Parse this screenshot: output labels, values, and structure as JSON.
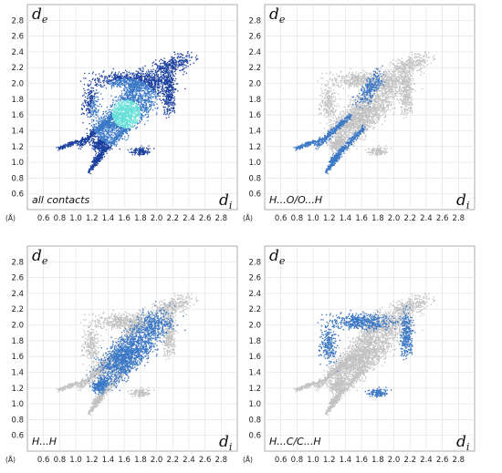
{
  "chart_data": [
    {
      "type": "scatter",
      "title": "",
      "label": "all contacts",
      "unit": "(Å)",
      "x_symbol": "d",
      "x_sub": "i",
      "y_symbol": "d",
      "y_sub": "e",
      "xlim": [
        0.4,
        3.0
      ],
      "ylim": [
        0.4,
        3.0
      ],
      "xticks": [
        "0.6",
        "0.8",
        "1.0",
        "1.2",
        "1.4",
        "1.6",
        "1.8",
        "2.0",
        "2.2",
        "2.4",
        "2.6",
        "2.8"
      ],
      "yticks": [
        "0.6",
        "0.8",
        "1.0",
        "1.2",
        "1.4",
        "1.6",
        "1.8",
        "2.0",
        "2.2",
        "2.4",
        "2.6",
        "2.8"
      ],
      "grid": true,
      "highlight": "all",
      "colors": {
        "dense": "#66e0d8",
        "mid": "#3a78c8",
        "sparse": "#1a3f9e",
        "background": "#c2c2c2"
      }
    },
    {
      "type": "scatter",
      "title": "",
      "label": "H...O/O...H",
      "unit": "(Å)",
      "x_symbol": "d",
      "x_sub": "i",
      "y_symbol": "d",
      "y_sub": "e",
      "xlim": [
        0.4,
        3.0
      ],
      "ylim": [
        0.4,
        3.0
      ],
      "xticks": [
        "0.6",
        "0.8",
        "1.0",
        "1.2",
        "1.4",
        "1.6",
        "1.8",
        "2.0",
        "2.2",
        "2.4",
        "2.6",
        "2.8"
      ],
      "yticks": [
        "0.6",
        "0.8",
        "1.0",
        "1.2",
        "1.4",
        "1.6",
        "1.8",
        "2.0",
        "2.2",
        "2.4",
        "2.6",
        "2.8"
      ],
      "grid": true,
      "highlight": "H...O/O...H",
      "colors": {
        "dense": "#66e0d8",
        "mid": "#3a78c8",
        "sparse": "#1a3f9e",
        "background": "#c2c2c2"
      }
    },
    {
      "type": "scatter",
      "title": "",
      "label": "H...H",
      "unit": "(Å)",
      "x_symbol": "d",
      "x_sub": "i",
      "y_symbol": "d",
      "y_sub": "e",
      "xlim": [
        0.4,
        3.0
      ],
      "ylim": [
        0.4,
        3.0
      ],
      "xticks": [
        "0.6",
        "0.8",
        "1.0",
        "1.2",
        "1.4",
        "1.6",
        "1.8",
        "2.0",
        "2.2",
        "2.4",
        "2.6",
        "2.8"
      ],
      "yticks": [
        "0.6",
        "0.8",
        "1.0",
        "1.2",
        "1.4",
        "1.6",
        "1.8",
        "2.0",
        "2.2",
        "2.4",
        "2.6",
        "2.8"
      ],
      "grid": true,
      "highlight": "H...H",
      "colors": {
        "dense": "#66e0d8",
        "mid": "#3a78c8",
        "sparse": "#1a3f9e",
        "background": "#c2c2c2"
      }
    },
    {
      "type": "scatter",
      "title": "",
      "label": "H...C/C...H",
      "unit": "(Å)",
      "x_symbol": "d",
      "x_sub": "i",
      "y_symbol": "d",
      "y_sub": "e",
      "xlim": [
        0.4,
        3.0
      ],
      "ylim": [
        0.4,
        3.0
      ],
      "xticks": [
        "0.6",
        "0.8",
        "1.0",
        "1.2",
        "1.4",
        "1.6",
        "1.8",
        "2.0",
        "2.2",
        "2.4",
        "2.6",
        "2.8"
      ],
      "yticks": [
        "0.6",
        "0.8",
        "1.0",
        "1.2",
        "1.4",
        "1.6",
        "1.8",
        "2.0",
        "2.2",
        "2.4",
        "2.6",
        "2.8"
      ],
      "grid": true,
      "highlight": "H...C/C...H",
      "colors": {
        "dense": "#66e0d8",
        "mid": "#3a78c8",
        "sparse": "#1a3f9e",
        "background": "#c2c2c2"
      }
    }
  ]
}
